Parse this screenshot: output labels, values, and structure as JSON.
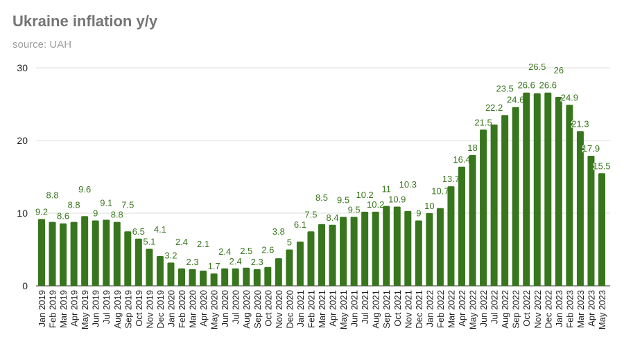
{
  "chart_data": {
    "type": "bar",
    "title": "Ukraine inflation y/y",
    "subtitle": "source: UAH",
    "xlabel": "",
    "ylabel": "",
    "ylim": [
      0,
      30
    ],
    "yticks": [
      0,
      10,
      20,
      30
    ],
    "grid": true,
    "bar_color": "#38761d",
    "label_color": "#38761d",
    "categories": [
      "Jan 2019",
      "Feb 2019",
      "Mar 2019",
      "Apr 2019",
      "May 2019",
      "Jun 2019",
      "Jul 2019",
      "Aug 2019",
      "Sep 2019",
      "Oct 2019",
      "Nov 2019",
      "Dec 2019",
      "Jan 2020",
      "Feb 2020",
      "Mar 2020",
      "Apr 2020",
      "May 2020",
      "Jun 2020",
      "Jul 2020",
      "Aug 2020",
      "Sep 2020",
      "Oct 2020",
      "Nov 2020",
      "Dec 2020",
      "Jan 2021",
      "Feb 2021",
      "Mar 2021",
      "Apr 2021",
      "May 2021",
      "Jun 2021",
      "Jul 2021",
      "Aug 2021",
      "Sep 2021",
      "Oct 2021",
      "Nov 2021",
      "Dec 2021",
      "Jan 2022",
      "Feb 2022",
      "Mar 2022",
      "Apr 2022",
      "May 2022",
      "Jun 2022",
      "Jul 2022",
      "Aug 2022",
      "Sep 2022",
      "Oct 2022",
      "Nov 2022",
      "Dec 2022",
      "Jan 2023",
      "Feb 2023",
      "Mar 2023",
      "Apr 2023",
      "May 2023"
    ],
    "values": [
      9.2,
      8.8,
      8.6,
      8.8,
      9.6,
      9,
      9.1,
      8.8,
      7.5,
      6.5,
      5.1,
      4.1,
      3.2,
      2.4,
      2.3,
      2.1,
      1.7,
      2.4,
      2.4,
      2.5,
      2.3,
      2.6,
      3.8,
      5,
      6.1,
      7.5,
      8.5,
      8.4,
      9.5,
      9.5,
      10.2,
      10.2,
      11,
      10.9,
      10.3,
      9,
      10,
      10.7,
      13.7,
      16.4,
      18,
      21.5,
      22.2,
      23.5,
      24.6,
      26.6,
      26.5,
      26.6,
      26,
      24.9,
      21.3,
      17.9,
      15.5
    ]
  }
}
